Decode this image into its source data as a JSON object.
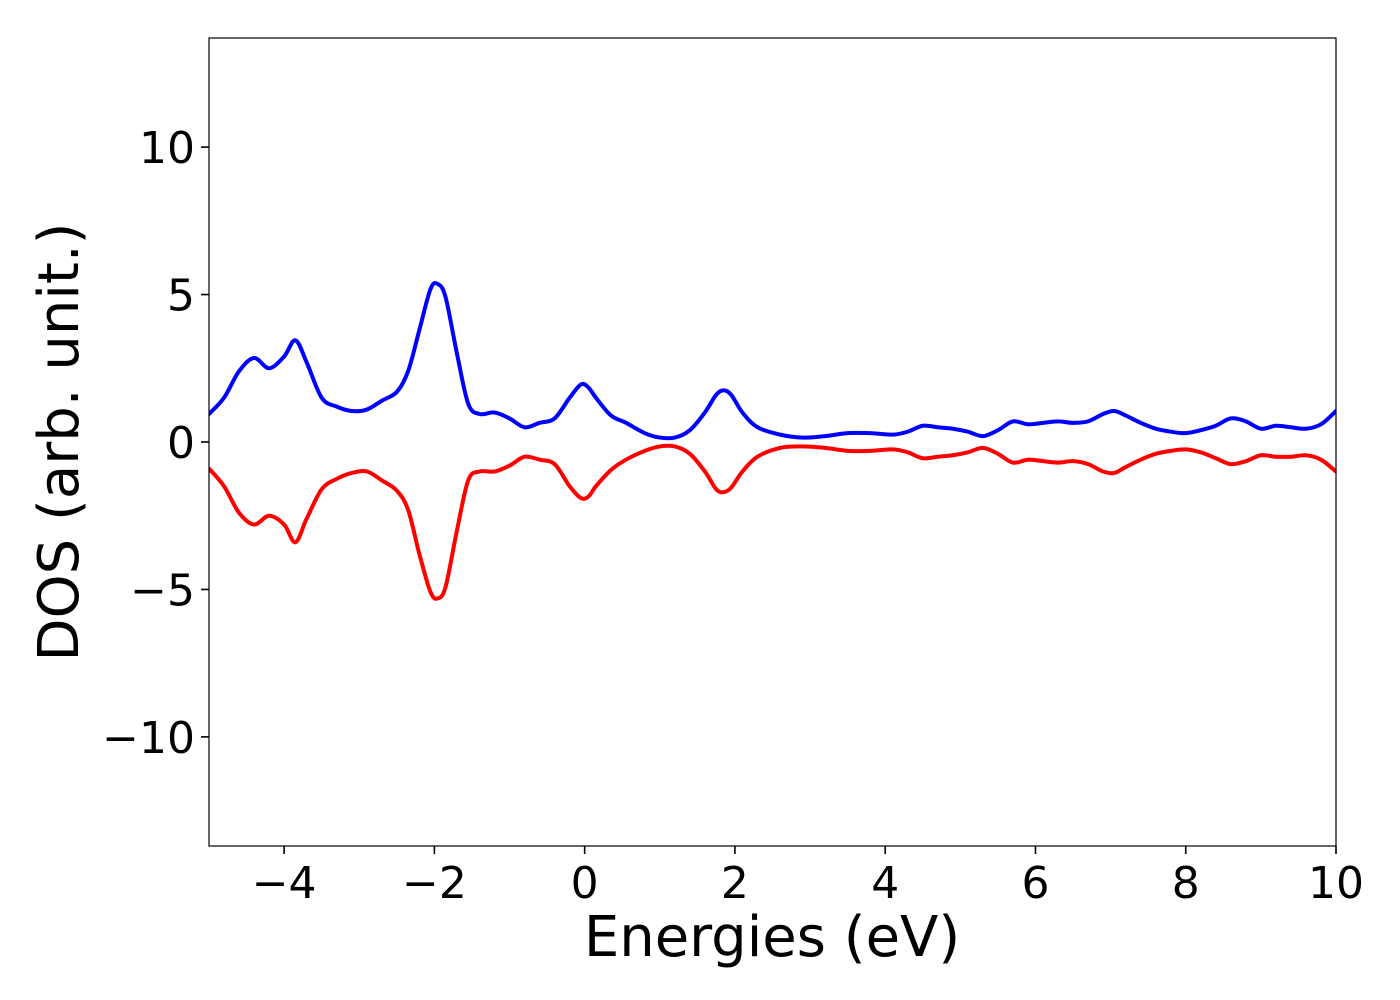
{
  "chart_data": {
    "type": "line",
    "title": "",
    "xlabel": "Energies (eV)",
    "ylabel": "DOS (arb. unit.)",
    "xlim": [
      -5,
      10
    ],
    "ylim": [
      -13.7,
      13.7
    ],
    "x_ticks": [
      -4,
      -2,
      0,
      2,
      4,
      6,
      8,
      10
    ],
    "x_tick_labels": [
      "−4",
      "−2",
      "0",
      "2",
      "4",
      "6",
      "8",
      "10"
    ],
    "y_ticks": [
      -10,
      -5,
      0,
      5,
      10
    ],
    "y_tick_labels": [
      "−10",
      "−5",
      "0",
      "5",
      "10"
    ],
    "grid": false,
    "legend": "none",
    "series": [
      {
        "color": "#0000ff",
        "x": [
          -5.0,
          -4.8,
          -4.6,
          -4.4,
          -4.2,
          -4.0,
          -3.85,
          -3.7,
          -3.5,
          -3.3,
          -3.1,
          -2.9,
          -2.7,
          -2.5,
          -2.35,
          -2.2,
          -2.05,
          -1.95,
          -1.85,
          -1.7,
          -1.55,
          -1.4,
          -1.2,
          -1.0,
          -0.8,
          -0.6,
          -0.4,
          -0.2,
          -0.05,
          0.05,
          0.15,
          0.35,
          0.55,
          0.8,
          1.0,
          1.2,
          1.4,
          1.6,
          1.75,
          1.85,
          1.95,
          2.1,
          2.3,
          2.6,
          2.9,
          3.2,
          3.5,
          3.8,
          4.1,
          4.3,
          4.5,
          4.7,
          4.9,
          5.1,
          5.3,
          5.5,
          5.7,
          5.9,
          6.1,
          6.3,
          6.5,
          6.7,
          6.9,
          7.05,
          7.2,
          7.4,
          7.6,
          7.8,
          8.0,
          8.2,
          8.4,
          8.6,
          8.8,
          9.0,
          9.2,
          9.4,
          9.6,
          9.8,
          10.0
        ],
        "y": [
          0.95,
          1.5,
          2.4,
          2.85,
          2.5,
          2.9,
          3.45,
          2.7,
          1.5,
          1.2,
          1.05,
          1.1,
          1.4,
          1.7,
          2.4,
          3.8,
          5.2,
          5.35,
          4.9,
          3.0,
          1.3,
          0.95,
          1.0,
          0.8,
          0.5,
          0.65,
          0.8,
          1.5,
          1.95,
          1.85,
          1.5,
          0.9,
          0.65,
          0.3,
          0.15,
          0.15,
          0.4,
          1.0,
          1.6,
          1.75,
          1.6,
          1.0,
          0.5,
          0.25,
          0.15,
          0.2,
          0.3,
          0.3,
          0.25,
          0.35,
          0.55,
          0.5,
          0.45,
          0.35,
          0.2,
          0.4,
          0.7,
          0.6,
          0.65,
          0.7,
          0.65,
          0.7,
          0.95,
          1.05,
          0.9,
          0.65,
          0.45,
          0.35,
          0.3,
          0.4,
          0.55,
          0.8,
          0.7,
          0.45,
          0.55,
          0.5,
          0.45,
          0.6,
          1.05
        ]
      },
      {
        "color": "#ff0000",
        "x": [
          -5.0,
          -4.8,
          -4.6,
          -4.4,
          -4.2,
          -4.0,
          -3.85,
          -3.7,
          -3.5,
          -3.3,
          -3.1,
          -2.9,
          -2.7,
          -2.5,
          -2.35,
          -2.2,
          -2.05,
          -1.95,
          -1.85,
          -1.7,
          -1.55,
          -1.4,
          -1.2,
          -1.0,
          -0.8,
          -0.6,
          -0.4,
          -0.2,
          -0.05,
          0.05,
          0.15,
          0.35,
          0.55,
          0.8,
          1.0,
          1.2,
          1.4,
          1.6,
          1.75,
          1.85,
          1.95,
          2.1,
          2.3,
          2.6,
          2.9,
          3.2,
          3.5,
          3.8,
          4.1,
          4.3,
          4.5,
          4.7,
          4.9,
          5.1,
          5.3,
          5.5,
          5.7,
          5.9,
          6.1,
          6.3,
          6.5,
          6.7,
          6.9,
          7.05,
          7.2,
          7.4,
          7.6,
          7.8,
          8.0,
          8.2,
          8.4,
          8.6,
          8.8,
          9.0,
          9.2,
          9.4,
          9.6,
          9.8,
          10.0
        ],
        "y": [
          -0.9,
          -1.5,
          -2.4,
          -2.8,
          -2.5,
          -2.8,
          -3.4,
          -2.6,
          -1.6,
          -1.25,
          -1.05,
          -1.0,
          -1.3,
          -1.65,
          -2.3,
          -3.8,
          -5.1,
          -5.3,
          -4.9,
          -3.0,
          -1.3,
          -1.0,
          -1.0,
          -0.8,
          -0.5,
          -0.6,
          -0.75,
          -1.5,
          -1.9,
          -1.85,
          -1.5,
          -0.95,
          -0.6,
          -0.3,
          -0.15,
          -0.15,
          -0.4,
          -1.0,
          -1.6,
          -1.7,
          -1.55,
          -1.0,
          -0.5,
          -0.2,
          -0.15,
          -0.2,
          -0.3,
          -0.3,
          -0.25,
          -0.35,
          -0.55,
          -0.5,
          -0.45,
          -0.35,
          -0.2,
          -0.4,
          -0.7,
          -0.6,
          -0.65,
          -0.7,
          -0.65,
          -0.75,
          -1.0,
          -1.05,
          -0.85,
          -0.6,
          -0.4,
          -0.3,
          -0.25,
          -0.35,
          -0.55,
          -0.75,
          -0.65,
          -0.45,
          -0.5,
          -0.5,
          -0.45,
          -0.6,
          -1.0
        ]
      }
    ]
  }
}
